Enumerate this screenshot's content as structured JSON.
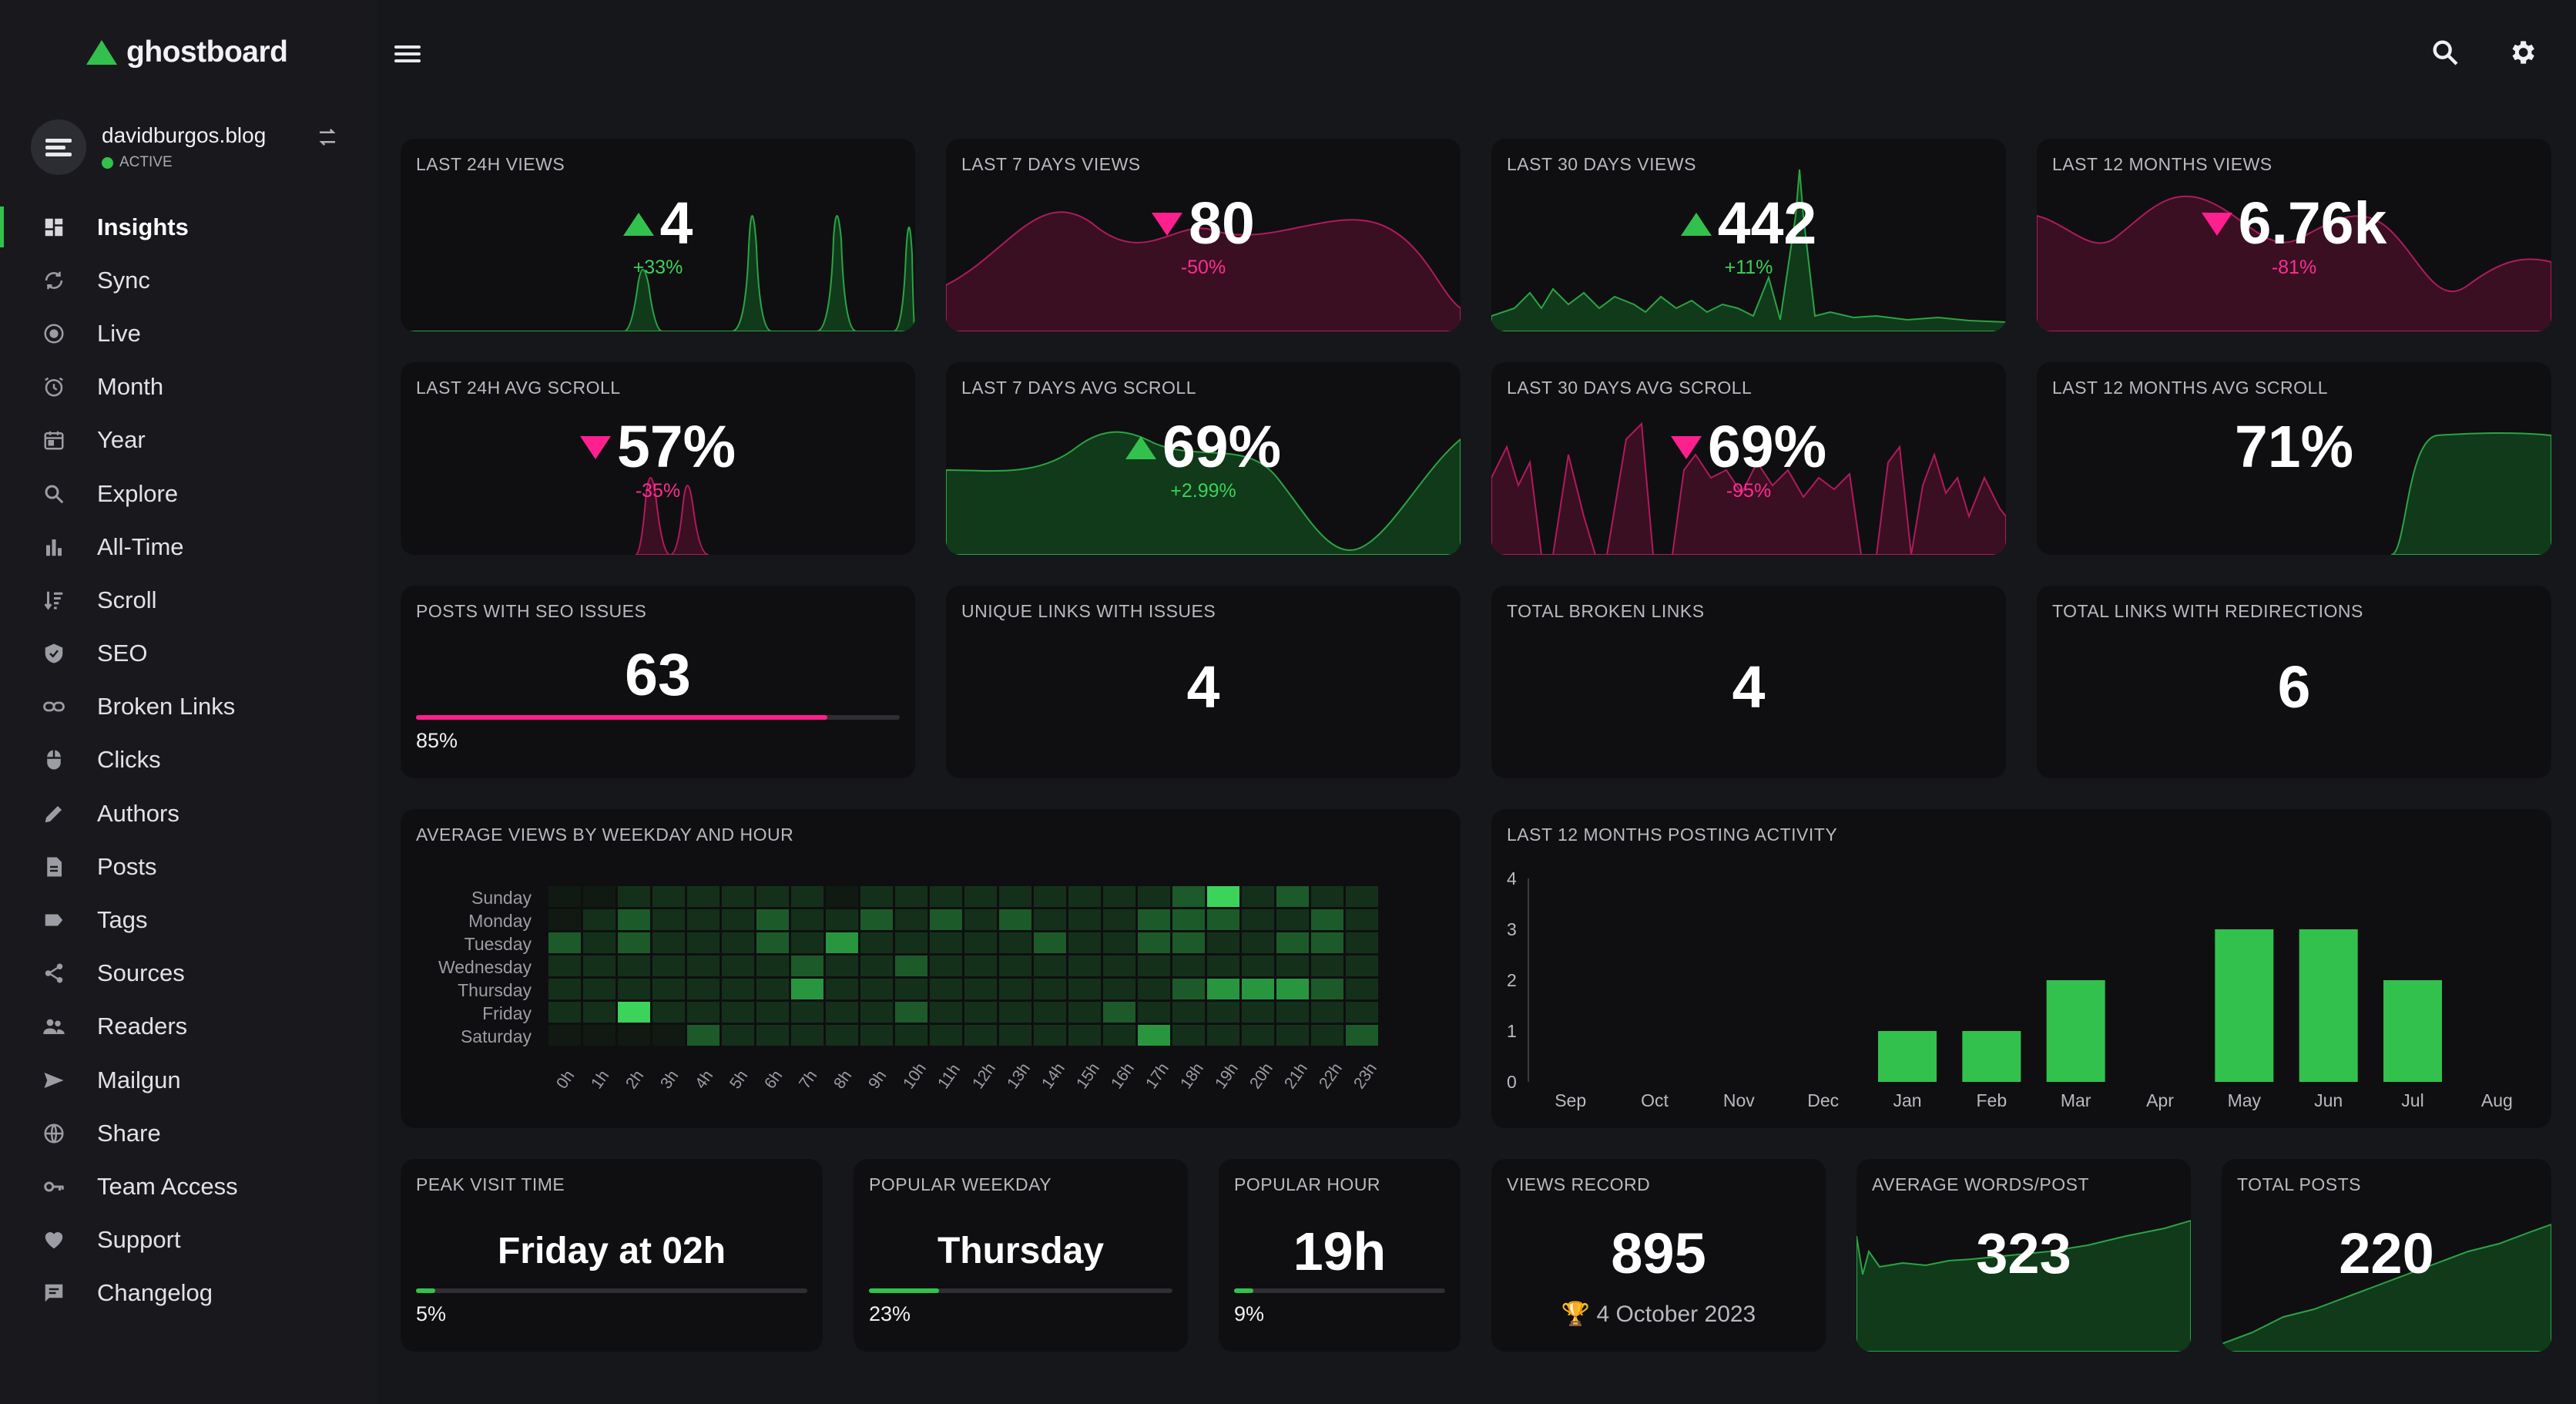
{
  "app": {
    "name": "ghostboard"
  },
  "site": {
    "name": "davidburgos.blog",
    "status": "ACTIVE"
  },
  "nav": [
    {
      "label": "Insights",
      "icon": "dashboard-icon",
      "active": true
    },
    {
      "label": "Sync",
      "icon": "sync-icon"
    },
    {
      "label": "Live",
      "icon": "live-icon"
    },
    {
      "label": "Month",
      "icon": "alarm-clock-icon"
    },
    {
      "label": "Year",
      "icon": "calendar-icon"
    },
    {
      "label": "Explore",
      "icon": "search-icon"
    },
    {
      "label": "All-Time",
      "icon": "bar-chart-icon"
    },
    {
      "label": "Scroll",
      "icon": "sort-icon"
    },
    {
      "label": "SEO",
      "icon": "shield-icon"
    },
    {
      "label": "Broken Links",
      "icon": "link-icon"
    },
    {
      "label": "Clicks",
      "icon": "mouse-icon"
    },
    {
      "label": "Authors",
      "icon": "pencil-icon"
    },
    {
      "label": "Posts",
      "icon": "document-icon"
    },
    {
      "label": "Tags",
      "icon": "tag-icon"
    },
    {
      "label": "Sources",
      "icon": "share-icon"
    },
    {
      "label": "Readers",
      "icon": "people-icon"
    },
    {
      "label": "Mailgun",
      "icon": "send-icon"
    },
    {
      "label": "Share",
      "icon": "globe-icon"
    },
    {
      "label": "Team Access",
      "icon": "key-icon"
    },
    {
      "label": "Support",
      "icon": "heart-icon"
    },
    {
      "label": "Changelog",
      "icon": "message-icon"
    }
  ],
  "colors": {
    "accent": "#33c14d",
    "negative": "#ff1f8e",
    "bg": "#16171b",
    "card": "#0f0f11"
  },
  "views": [
    {
      "label": "LAST 24H VIEWS",
      "value": "4",
      "delta": "+33%",
      "trend": "up"
    },
    {
      "label": "LAST 7 DAYS VIEWS",
      "value": "80",
      "delta": "-50%",
      "trend": "down"
    },
    {
      "label": "LAST 30 DAYS VIEWS",
      "value": "442",
      "delta": "+11%",
      "trend": "up"
    },
    {
      "label": "LAST 12 MONTHS VIEWS",
      "value": "6.76k",
      "delta": "-81%",
      "trend": "down"
    }
  ],
  "scroll": [
    {
      "label": "LAST 24H AVG SCROLL",
      "value": "57%",
      "delta": "-35%",
      "trend": "down"
    },
    {
      "label": "LAST 7 DAYS AVG SCROLL",
      "value": "69%",
      "delta": "+2.99%",
      "trend": "up"
    },
    {
      "label": "LAST 30 DAYS AVG SCROLL",
      "value": "69%",
      "delta": "-95%",
      "trend": "down"
    },
    {
      "label": "LAST 12 MONTHS AVG SCROLL",
      "value": "71%",
      "delta": "",
      "trend": "none"
    }
  ],
  "issues": {
    "seo": {
      "label": "POSTS WITH SEO ISSUES",
      "value": "63",
      "percent": "85%",
      "fraction": 0.85
    },
    "unique_links": {
      "label": "UNIQUE LINKS WITH ISSUES",
      "value": "4"
    },
    "broken_links": {
      "label": "TOTAL BROKEN LINKS",
      "value": "4"
    },
    "redirections": {
      "label": "TOTAL LINKS WITH REDIRECTIONS",
      "value": "6"
    }
  },
  "heatmap": {
    "title": "AVERAGE VIEWS BY WEEKDAY AND HOUR",
    "days": [
      "Sunday",
      "Monday",
      "Tuesday",
      "Wednesday",
      "Thursday",
      "Friday",
      "Saturday"
    ],
    "hours": [
      "0h",
      "1h",
      "2h",
      "3h",
      "4h",
      "5h",
      "6h",
      "7h",
      "8h",
      "9h",
      "10h",
      "11h",
      "12h",
      "13h",
      "14h",
      "15h",
      "16h",
      "17h",
      "18h",
      "19h",
      "20h",
      "21h",
      "22h",
      "23h"
    ],
    "levels": [
      [
        0,
        0,
        1,
        1,
        1,
        1,
        1,
        1,
        0,
        1,
        1,
        1,
        1,
        1,
        1,
        1,
        1,
        1,
        2,
        4,
        1,
        2,
        1,
        1
      ],
      [
        0,
        1,
        2,
        1,
        1,
        1,
        2,
        1,
        1,
        2,
        1,
        2,
        1,
        2,
        1,
        1,
        1,
        2,
        2,
        2,
        1,
        1,
        2,
        1
      ],
      [
        2,
        1,
        2,
        1,
        1,
        1,
        2,
        1,
        3,
        1,
        1,
        1,
        1,
        1,
        2,
        1,
        1,
        2,
        2,
        1,
        1,
        2,
        2,
        1
      ],
      [
        1,
        1,
        1,
        1,
        1,
        1,
        1,
        2,
        1,
        1,
        2,
        1,
        1,
        1,
        1,
        1,
        1,
        1,
        1,
        1,
        1,
        1,
        1,
        1
      ],
      [
        1,
        1,
        1,
        1,
        1,
        1,
        1,
        3,
        1,
        1,
        1,
        1,
        1,
        1,
        1,
        1,
        1,
        1,
        2,
        3,
        3,
        3,
        2,
        1
      ],
      [
        1,
        1,
        4,
        1,
        1,
        1,
        1,
        1,
        1,
        1,
        2,
        1,
        1,
        1,
        1,
        1,
        2,
        1,
        1,
        1,
        1,
        1,
        1,
        1
      ],
      [
        0,
        0,
        0,
        0,
        2,
        1,
        1,
        1,
        1,
        1,
        1,
        1,
        1,
        1,
        1,
        1,
        1,
        3,
        1,
        1,
        1,
        1,
        1,
        2
      ]
    ]
  },
  "chart_data": {
    "type": "bar",
    "title": "LAST 12 MONTHS POSTING ACTIVITY",
    "categories": [
      "Sep",
      "Oct",
      "Nov",
      "Dec",
      "Jan",
      "Feb",
      "Mar",
      "Apr",
      "May",
      "Jun",
      "Jul",
      "Aug"
    ],
    "values": [
      0,
      0,
      0,
      0,
      1,
      1,
      2,
      0,
      3,
      3,
      2,
      0
    ],
    "ylim": [
      0,
      4
    ],
    "yticks": [
      "0",
      "1",
      "2",
      "3",
      "4"
    ]
  },
  "stats": {
    "peak_visit": {
      "label": "PEAK VISIT TIME",
      "value": "Friday at 02h",
      "percent": "5%",
      "fraction": 0.05
    },
    "popular_weekday": {
      "label": "POPULAR WEEKDAY",
      "value": "Thursday",
      "percent": "23%",
      "fraction": 0.23
    },
    "popular_hour": {
      "label": "POPULAR HOUR",
      "value": "19h",
      "percent": "9%",
      "fraction": 0.09
    },
    "views_record": {
      "label": "VIEWS RECORD",
      "value": "895",
      "date": "4 October 2023",
      "icon": "trophy-icon"
    },
    "avg_words": {
      "label": "AVERAGE WORDS/POST",
      "value": "323"
    },
    "total_posts": {
      "label": "TOTAL POSTS",
      "value": "220"
    }
  }
}
